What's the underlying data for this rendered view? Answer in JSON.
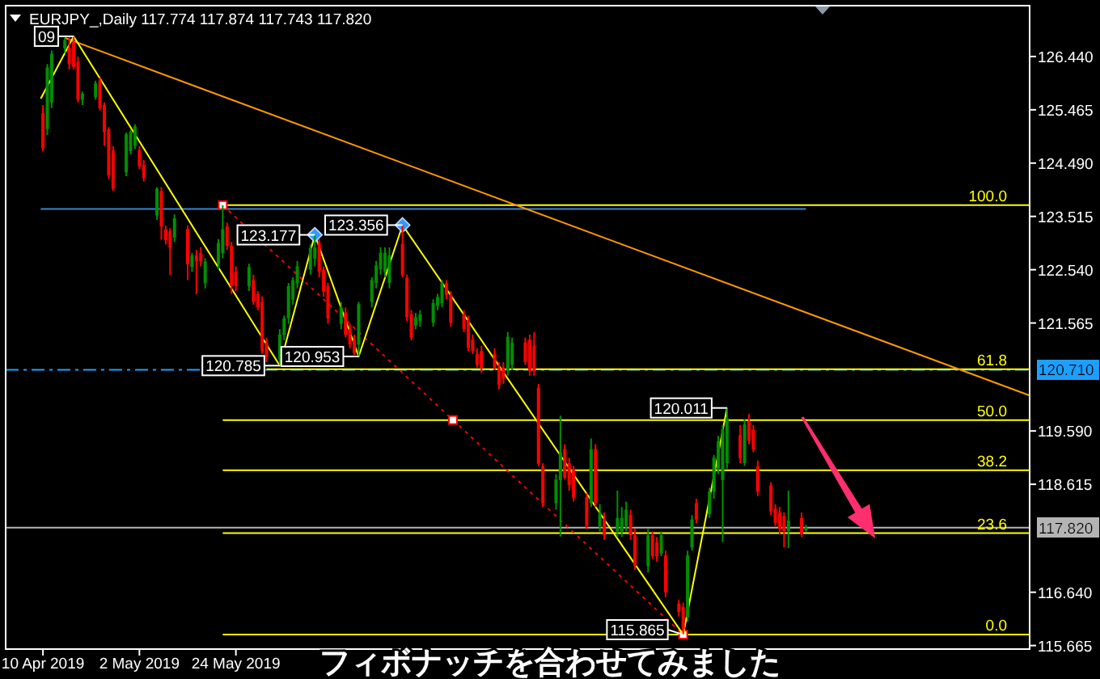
{
  "chart_data": {
    "type": "candlestick",
    "title": "EURJPY_,Daily 117.774 117.874 117.743 117.820",
    "xlim": [
      "2019-04-01T12:00",
      "2019-11-21"
    ],
    "xticks": [
      {
        "value": "2019-04-10",
        "label": "10 Apr 2019"
      },
      {
        "value": "2019-05-02",
        "label": "2 May 2019"
      },
      {
        "value": "2019-05-24",
        "label": "24 May 2019"
      }
    ],
    "ylim": [
      115.6,
      127.37
    ],
    "yticks": [
      {
        "value": 126.44,
        "label": "126.440"
      },
      {
        "value": 125.465,
        "label": "125.465"
      },
      {
        "value": 124.49,
        "label": "124.490"
      },
      {
        "value": 123.515,
        "label": "123.515"
      },
      {
        "value": 122.54,
        "label": "122.540"
      },
      {
        "value": 121.565,
        "label": "121.565"
      },
      {
        "value": 119.59,
        "label": "119.590"
      },
      {
        "value": 118.615,
        "label": "118.615"
      },
      {
        "value": 116.64,
        "label": "116.640"
      },
      {
        "value": 115.665,
        "label": "115.665"
      }
    ],
    "series": [
      {
        "type": "line",
        "name": "100.0",
        "color": "#ffff00",
        "x": [
          "2019-05-21",
          "2019-11-21"
        ],
        "values": [
          123.72,
          123.72
        ]
      },
      {
        "type": "line",
        "name": "61.8",
        "color": "#ffff00",
        "x": [
          "2019-05-31",
          "2019-11-21"
        ],
        "values": [
          120.72,
          120.72
        ]
      },
      {
        "type": "line",
        "name": "50.0",
        "color": "#ffff00",
        "x": [
          "2019-05-21",
          "2019-11-21"
        ],
        "values": [
          119.79,
          119.79
        ]
      },
      {
        "type": "line",
        "name": "38.2",
        "color": "#ffff00",
        "x": [
          "2019-05-21",
          "2019-11-21"
        ],
        "values": [
          118.87,
          118.87
        ]
      },
      {
        "type": "line",
        "name": "23.6",
        "color": "#ffff00",
        "x": [
          "2019-05-21",
          "2019-11-21"
        ],
        "values": [
          117.72,
          117.72
        ]
      },
      {
        "type": "line",
        "name": "0.0",
        "color": "#ffff00",
        "x": [
          "2019-05-21",
          "2019-11-21"
        ],
        "values": [
          115.865,
          115.865
        ]
      },
      {
        "type": "line",
        "color": "#3a86d0",
        "x": [
          "2019-04-09T12:00",
          "2019-10-01"
        ],
        "values": [
          123.65,
          123.65
        ]
      },
      {
        "type": "line",
        "color": "#ff9900",
        "x": [
          "2019-04-15",
          "2019-11-21"
        ],
        "values": [
          126.78,
          120.24
        ]
      },
      {
        "type": "line",
        "color": "#ff0000",
        "line_style": "dotted",
        "marker": "square",
        "x": [
          "2019-05-21",
          "2019-07-12T12:00",
          "2019-09-03"
        ],
        "values": [
          123.72,
          119.79,
          115.865
        ]
      },
      {
        "type": "line",
        "color": "#ffff00",
        "x": [
          "2019-04-09T12:00",
          "2019-04-17",
          "2019-06-03",
          "2019-06-11",
          "2019-06-21",
          "2019-07-01",
          "2019-09-03",
          "2019-09-13"
        ],
        "values": [
          125.67,
          126.809,
          120.785,
          123.177,
          120.953,
          123.356,
          115.865,
          120.011
        ]
      },
      {
        "type": "scatter",
        "color": "#3399ff",
        "marker": "diamond",
        "x": [
          "2019-06-11",
          "2019-07-01"
        ],
        "values": [
          123.177,
          123.356
        ]
      },
      {
        "x": [
          "2019-04-10",
          "2019-04-11",
          "2019-04-12",
          "2019-04-15",
          "2019-04-16",
          "2019-04-17",
          "2019-04-18",
          "2019-04-19",
          "2019-04-22",
          "2019-04-23",
          "2019-04-24",
          "2019-04-25",
          "2019-04-26",
          "2019-04-29",
          "2019-04-30",
          "2019-05-01",
          "2019-05-02",
          "2019-05-03",
          "2019-05-06",
          "2019-05-07",
          "2019-05-08",
          "2019-05-09",
          "2019-05-10",
          "2019-05-13",
          "2019-05-14",
          "2019-05-15",
          "2019-05-16",
          "2019-05-17",
          "2019-05-20",
          "2019-05-21",
          "2019-05-22",
          "2019-05-23",
          "2019-05-24",
          "2019-05-27",
          "2019-05-28",
          "2019-05-29",
          "2019-05-30",
          "2019-05-31",
          "2019-06-03",
          "2019-06-04",
          "2019-06-05",
          "2019-06-06",
          "2019-06-07",
          "2019-06-10",
          "2019-06-11",
          "2019-06-12",
          "2019-06-13",
          "2019-06-14",
          "2019-06-17",
          "2019-06-18",
          "2019-06-19",
          "2019-06-20",
          "2019-06-21",
          "2019-06-24",
          "2019-06-25",
          "2019-06-26",
          "2019-06-27",
          "2019-06-28",
          "2019-07-01",
          "2019-07-02",
          "2019-07-03",
          "2019-07-04",
          "2019-07-05",
          "2019-07-08",
          "2019-07-09",
          "2019-07-10",
          "2019-07-11",
          "2019-07-12",
          "2019-07-15",
          "2019-07-16",
          "2019-07-17",
          "2019-07-18",
          "2019-07-19",
          "2019-07-22",
          "2019-07-23",
          "2019-07-24",
          "2019-07-25",
          "2019-07-26",
          "2019-07-29",
          "2019-07-30",
          "2019-07-31",
          "2019-08-01",
          "2019-08-02",
          "2019-08-05",
          "2019-08-06",
          "2019-08-07",
          "2019-08-08",
          "2019-08-09",
          "2019-08-12",
          "2019-08-13",
          "2019-08-14",
          "2019-08-15",
          "2019-08-16",
          "2019-08-19",
          "2019-08-20",
          "2019-08-21",
          "2019-08-22",
          "2019-08-23",
          "2019-08-26",
          "2019-08-27",
          "2019-08-28",
          "2019-08-29",
          "2019-08-30",
          "2019-09-02",
          "2019-09-03",
          "2019-09-04",
          "2019-09-05",
          "2019-09-06",
          "2019-09-09",
          "2019-09-10",
          "2019-09-11",
          "2019-09-12",
          "2019-09-13",
          "2019-09-16",
          "2019-09-17",
          "2019-09-18",
          "2019-09-19",
          "2019-09-20",
          "2019-09-23",
          "2019-09-24",
          "2019-09-25",
          "2019-09-26",
          "2019-09-27",
          "2019-09-30",
          "2019-10-01"
        ],
        "ohlc": [
          [
            125.4,
            125.55,
            124.7,
            124.76
          ],
          [
            125.11,
            126.3,
            125.0,
            126.24
          ],
          [
            125.6,
            126.55,
            125.5,
            126.49
          ],
          [
            126.59,
            126.78,
            126.5,
            126.74
          ],
          [
            126.6,
            126.79,
            126.2,
            126.3
          ],
          [
            126.7,
            126.809,
            126.2,
            126.25
          ],
          [
            126.35,
            126.44,
            125.6,
            125.65
          ],
          [
            125.65,
            125.8,
            125.55,
            125.76
          ],
          [
            125.7,
            126.0,
            125.65,
            125.95
          ],
          [
            126.0,
            126.05,
            125.45,
            125.5
          ],
          [
            125.55,
            125.6,
            124.81,
            125.06
          ],
          [
            125.11,
            125.15,
            124.2,
            124.27
          ],
          [
            124.72,
            124.8,
            123.98,
            124.02
          ],
          [
            124.32,
            125.05,
            124.25,
            125.02
          ],
          [
            124.71,
            125.1,
            124.65,
            125.06
          ],
          [
            124.81,
            125.2,
            124.75,
            125.16
          ],
          [
            124.72,
            124.8,
            124.38,
            124.43
          ],
          [
            124.46,
            124.55,
            124.15,
            124.22
          ],
          [
            123.53,
            124.05,
            123.45,
            124.02
          ],
          [
            123.98,
            124.05,
            123.09,
            123.33
          ],
          [
            123.28,
            123.35,
            123.0,
            123.08
          ],
          [
            123.24,
            123.3,
            122.44,
            122.94
          ],
          [
            123.13,
            123.55,
            123.05,
            123.48
          ],
          [
            123.28,
            123.35,
            122.35,
            122.64
          ],
          [
            122.59,
            122.85,
            122.5,
            122.8
          ],
          [
            122.8,
            122.9,
            122.09,
            122.69
          ],
          [
            122.84,
            122.95,
            122.6,
            122.69
          ],
          [
            122.29,
            122.75,
            122.2,
            122.69
          ],
          [
            122.64,
            123.1,
            122.55,
            123.03
          ],
          [
            122.84,
            123.72,
            122.75,
            123.28
          ],
          [
            123.33,
            123.4,
            122.9,
            122.98
          ],
          [
            122.98,
            123.05,
            122.1,
            122.24
          ],
          [
            122.5,
            122.6,
            122.15,
            122.24
          ],
          [
            122.24,
            122.65,
            122.15,
            122.59
          ],
          [
            122.35,
            122.45,
            121.9,
            121.95
          ],
          [
            122.09,
            122.15,
            121.8,
            121.85
          ],
          [
            121.95,
            122.05,
            121.0,
            121.05
          ],
          [
            121.2,
            121.3,
            120.85,
            120.95
          ],
          [
            120.9,
            121.45,
            120.785,
            121.35
          ],
          [
            121.35,
            121.7,
            121.25,
            121.65
          ],
          [
            121.65,
            122.3,
            121.55,
            122.24
          ],
          [
            121.99,
            122.4,
            121.9,
            122.35
          ],
          [
            122.3,
            122.7,
            122.2,
            122.6
          ],
          [
            122.54,
            123.0,
            122.45,
            122.94
          ],
          [
            122.74,
            123.177,
            122.6,
            122.95
          ],
          [
            123.03,
            123.1,
            122.4,
            122.5
          ],
          [
            122.54,
            122.6,
            122.05,
            122.14
          ],
          [
            122.24,
            122.3,
            121.55,
            121.65
          ],
          [
            121.55,
            121.95,
            121.45,
            121.85
          ],
          [
            121.76,
            121.85,
            121.3,
            121.35
          ],
          [
            121.46,
            121.55,
            121.1,
            121.17
          ],
          [
            121.26,
            121.35,
            120.98,
            121.02
          ],
          [
            121.17,
            121.95,
            120.953,
            121.91
          ],
          [
            121.95,
            122.4,
            121.85,
            122.35
          ],
          [
            122.3,
            122.7,
            122.2,
            122.62
          ],
          [
            122.55,
            122.95,
            122.45,
            122.85
          ],
          [
            122.5,
            122.95,
            122.4,
            122.85
          ],
          [
            122.3,
            122.95,
            122.2,
            122.8
          ],
          [
            123.01,
            123.356,
            122.4,
            122.44
          ],
          [
            122.39,
            122.45,
            121.6,
            121.67
          ],
          [
            121.72,
            121.8,
            121.25,
            121.3
          ],
          [
            121.52,
            121.75,
            121.45,
            121.67
          ],
          [
            121.6,
            121.8,
            121.5,
            121.72
          ],
          [
            121.57,
            122.0,
            121.5,
            121.93
          ],
          [
            121.88,
            122.1,
            121.8,
            122.04
          ],
          [
            121.93,
            122.35,
            121.85,
            122.29
          ],
          [
            122.29,
            122.35,
            122.0,
            122.08
          ],
          [
            122.08,
            122.15,
            121.5,
            121.57
          ],
          [
            121.72,
            121.8,
            121.4,
            121.46
          ],
          [
            121.62,
            121.7,
            121.05,
            121.11
          ],
          [
            121.26,
            121.35,
            121.0,
            121.05
          ],
          [
            121.0,
            121.1,
            120.75,
            120.8
          ],
          [
            121.05,
            121.15,
            120.65,
            120.74
          ],
          [
            121.0,
            121.1,
            120.7,
            120.75
          ],
          [
            120.75,
            120.85,
            120.35,
            120.43
          ],
          [
            120.75,
            120.85,
            120.45,
            120.55
          ],
          [
            120.69,
            121.4,
            120.6,
            121.31
          ],
          [
            120.8,
            121.3,
            120.7,
            121.2
          ],
          [
            121.21,
            121.3,
            120.8,
            120.85
          ],
          [
            121.26,
            121.35,
            120.6,
            120.69
          ],
          [
            121.15,
            121.4,
            120.6,
            120.69
          ],
          [
            120.38,
            120.45,
            118.95,
            118.99
          ],
          [
            118.94,
            119.0,
            118.2,
            118.27
          ],
          [
            118.27,
            118.8,
            118.15,
            118.7
          ],
          [
            118.69,
            119.87,
            117.66,
            119.2
          ],
          [
            119.26,
            119.35,
            118.7,
            118.74
          ],
          [
            119.0,
            119.1,
            118.5,
            118.6
          ],
          [
            118.88,
            118.95,
            118.3,
            118.37
          ],
          [
            118.38,
            118.45,
            117.8,
            117.86
          ],
          [
            118.27,
            119.45,
            118.2,
            119.26
          ],
          [
            119.26,
            119.35,
            118.2,
            118.27
          ],
          [
            117.85,
            118.25,
            117.75,
            118.1
          ],
          [
            117.98,
            118.1,
            117.6,
            117.68
          ],
          [
            117.75,
            118.5,
            117.65,
            118.0
          ],
          [
            117.75,
            118.2,
            117.65,
            118.0
          ],
          [
            117.85,
            118.3,
            117.75,
            118.15
          ],
          [
            118.05,
            118.15,
            117.6,
            117.68
          ],
          [
            117.68,
            117.8,
            117.05,
            117.12
          ],
          [
            117.12,
            117.8,
            117.0,
            117.68
          ],
          [
            117.68,
            117.75,
            117.25,
            117.3
          ],
          [
            117.55,
            117.65,
            117.2,
            117.3
          ],
          [
            117.35,
            117.75,
            117.3,
            117.68
          ],
          [
            117.31,
            117.4,
            116.55,
            116.64
          ],
          [
            116.43,
            116.5,
            116.2,
            116.28
          ],
          [
            116.37,
            116.45,
            115.865,
            115.97
          ],
          [
            116.18,
            117.4,
            116.1,
            117.31
          ],
          [
            117.46,
            118.05,
            117.4,
            117.97
          ],
          [
            118.27,
            118.35,
            117.9,
            117.97
          ],
          [
            118.07,
            118.55,
            118.0,
            118.48
          ],
          [
            118.48,
            119.15,
            118.35,
            119.1
          ],
          [
            118.9,
            119.5,
            118.8,
            119.4
          ],
          [
            118.69,
            119.7,
            117.56,
            119.62
          ],
          [
            119.0,
            120.011,
            118.9,
            119.82
          ],
          [
            119.51,
            119.7,
            119.0,
            119.09
          ],
          [
            119.0,
            119.8,
            118.95,
            119.71
          ],
          [
            119.77,
            119.9,
            119.35,
            119.41
          ],
          [
            119.61,
            119.7,
            119.2,
            119.25
          ],
          [
            118.94,
            119.05,
            118.4,
            118.48
          ],
          [
            118.59,
            118.65,
            118.05,
            118.12
          ],
          [
            118.17,
            118.25,
            117.85,
            117.91
          ],
          [
            118.1,
            118.2,
            117.7,
            117.8
          ],
          [
            118.03,
            118.1,
            117.46,
            117.76
          ],
          [
            117.76,
            118.5,
            117.45,
            117.95
          ],
          [
            118.0,
            118.1,
            117.65,
            117.7
          ],
          [
            117.774,
            117.874,
            117.743,
            117.82
          ]
        ],
        "colors": [
          "#ff0000",
          "#008f00",
          "#008f00",
          "#008f00",
          "#ff0000",
          "#ff0000",
          "#ff0000",
          "#008f00",
          "#008f00",
          "#ff0000",
          "#ff0000",
          "#ff0000",
          "#ff0000",
          "#008f00",
          "#008f00",
          "#008f00",
          "#ff0000",
          "#ff0000",
          "#008f00",
          "#ff0000",
          "#ff0000",
          "#ff0000",
          "#008f00",
          "#ff0000",
          "#008f00",
          "#ff0000",
          "#ff0000",
          "#008f00",
          "#008f00",
          "#008f00",
          "#ff0000",
          "#ff0000",
          "#ff0000",
          "#008f00",
          "#ff0000",
          "#ff0000",
          "#ff0000",
          "#ff0000",
          "#008f00",
          "#008f00",
          "#008f00",
          "#008f00",
          "#008f00",
          "#008f00",
          "#008f00",
          "#ff0000",
          "#ff0000",
          "#ff0000",
          "#008f00",
          "#ff0000",
          "#ff0000",
          "#ff0000",
          "#008f00",
          "#008f00",
          "#008f00",
          "#008f00",
          "#008f00",
          "#008f00",
          "#ff0000",
          "#ff0000",
          "#ff0000",
          "#008f00",
          "#008f00",
          "#008f00",
          "#008f00",
          "#008f00",
          "#ff0000",
          "#ff0000",
          "#ff0000",
          "#ff0000",
          "#ff0000",
          "#ff0000",
          "#ff0000",
          "#ff0000",
          "#ff0000",
          "#ff0000",
          "#008f00",
          "#008f00",
          "#ff0000",
          "#ff0000",
          "#ff0000",
          "#ff0000",
          "#ff0000",
          "#008f00",
          "#008f00",
          "#ff0000",
          "#ff0000",
          "#ff0000",
          "#ff0000",
          "#008f00",
          "#ff0000",
          "#008f00",
          "#ff0000",
          "#008f00",
          "#008f00",
          "#008f00",
          "#ff0000",
          "#ff0000",
          "#008f00",
          "#ff0000",
          "#ff0000",
          "#008f00",
          "#ff0000",
          "#ff0000",
          "#ff0000",
          "#008f00",
          "#008f00",
          "#ff0000",
          "#008f00",
          "#008f00",
          "#008f00",
          "#008f00",
          "#008f00",
          "#ff0000",
          "#008f00",
          "#ff0000",
          "#ff0000",
          "#ff0000",
          "#ff0000",
          "#ff0000",
          "#ff0000",
          "#ff0000",
          "#008f00",
          "#ff0000",
          "#008f00"
        ]
      }
    ],
    "ref_lines": [
      {
        "axis": "y",
        "value": 120.71,
        "label": "120.710",
        "color": "#1e9fff",
        "line_style": "dashdot"
      },
      {
        "axis": "y",
        "value": 117.82,
        "label": "117.820",
        "color": "#b4b4b4"
      }
    ],
    "annotations": [
      {
        "text": "09",
        "x": "2019-04-17",
        "y": 126.809
      },
      {
        "text": "120.785",
        "x": "2019-06-03",
        "y": 120.785
      },
      {
        "text": "123.177",
        "x": "2019-06-11",
        "y": 123.177
      },
      {
        "text": "120.953",
        "x": "2019-06-21",
        "y": 120.953
      },
      {
        "text": "123.356",
        "x": "2019-07-01",
        "y": 123.356
      },
      {
        "text": "115.865",
        "x": "2019-09-03",
        "y": 115.865
      },
      {
        "text": "120.011",
        "x": "2019-09-13",
        "y": 120.011
      },
      "フィボナッチを合わせてみました"
    ]
  }
}
